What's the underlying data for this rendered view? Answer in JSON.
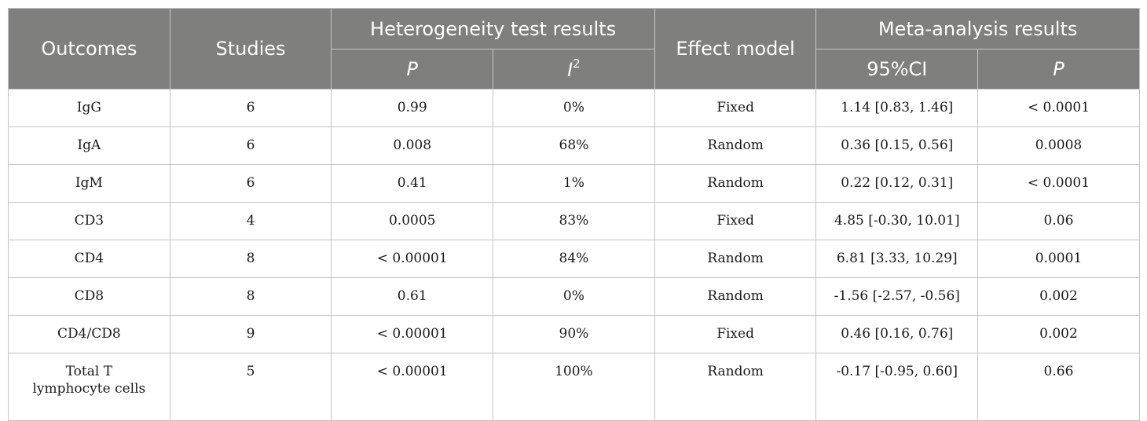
{
  "header": {
    "outcomes": "Outcomes",
    "studies": "Studies",
    "heterogeneity": "Heterogeneity test results",
    "effect_model": "Effect model",
    "meta_results": "Meta-analysis results",
    "p": "P",
    "i": "I",
    "i_sup": "2",
    "ci": "95%CI",
    "p2": "P"
  },
  "rows": [
    {
      "outcome": "IgG",
      "studies": "6",
      "p": "0.99",
      "i2": "0%",
      "model": "Fixed",
      "ci": "1.14 [0.83, 1.46]",
      "p_meta": "< 0.0001"
    },
    {
      "outcome": "IgA",
      "studies": "6",
      "p": "0.008",
      "i2": "68%",
      "model": "Random",
      "ci": "0.36 [0.15, 0.56]",
      "p_meta": "0.0008"
    },
    {
      "outcome": "IgM",
      "studies": "6",
      "p": "0.41",
      "i2": "1%",
      "model": "Random",
      "ci": "0.22 [0.12, 0.31]",
      "p_meta": "< 0.0001"
    },
    {
      "outcome": "CD3",
      "studies": "4",
      "p": "0.0005",
      "i2": "83%",
      "model": "Fixed",
      "ci": "4.85 [-0.30, 10.01]",
      "p_meta": "0.06"
    },
    {
      "outcome": "CD4",
      "studies": "8",
      "p": "< 0.00001",
      "i2": "84%",
      "model": "Random",
      "ci": "6.81 [3.33, 10.29]",
      "p_meta": "0.0001"
    },
    {
      "outcome": "CD8",
      "studies": "8",
      "p": "0.61",
      "i2": "0%",
      "model": "Random",
      "ci": "-1.56 [-2.57, -0.56]",
      "p_meta": "0.002"
    },
    {
      "outcome": "CD4/CD8",
      "studies": "9",
      "p": "< 0.00001",
      "i2": "90%",
      "model": "Fixed",
      "ci": "0.46 [0.16, 0.76]",
      "p_meta": "0.002"
    },
    {
      "outcome_line1": "Total T",
      "outcome_line2": "lymphocyte cells",
      "studies": "5",
      "p": "< 0.00001",
      "i2": "100%",
      "model": "Random",
      "ci": "-0.17 [-0.95, 0.60]",
      "p_meta": "0.66"
    }
  ]
}
